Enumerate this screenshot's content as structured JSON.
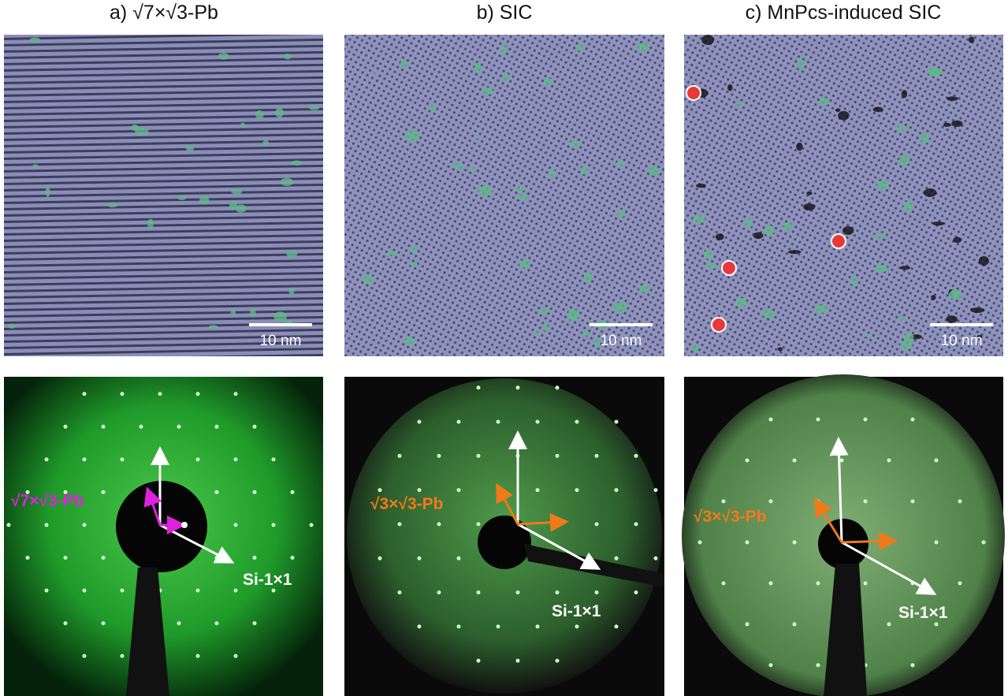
{
  "panels": [
    {
      "title": "a) √7×√3-Pb",
      "scale_bar": "10 nm",
      "leed_label": "√7×√3-Pb",
      "leed_substrate": "Si-1×1"
    },
    {
      "title": "b) SIC",
      "scale_bar": "10 nm",
      "leed_label": "√3×√3-Pb",
      "leed_substrate": "Si-1×1"
    },
    {
      "title": "c) MnPcs-induced SIC",
      "scale_bar": "10 nm",
      "leed_label": "√3×√3-Pb",
      "leed_substrate": "Si-1×1"
    }
  ]
}
